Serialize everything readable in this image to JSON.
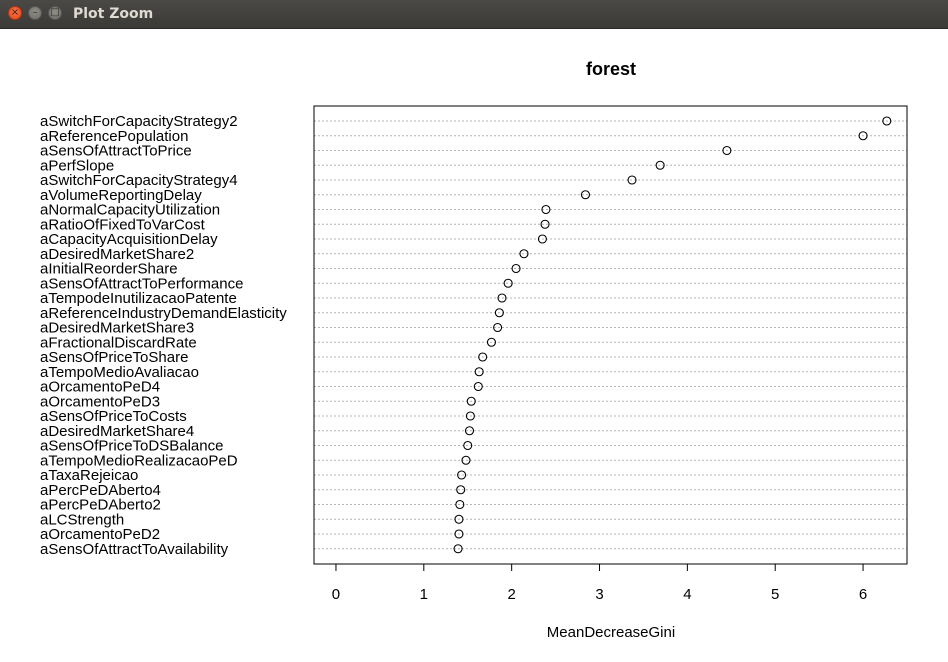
{
  "window": {
    "title": "Plot Zoom",
    "close_glyph": "×",
    "minimize_glyph": "–",
    "maximize_glyph": "□"
  },
  "chart_data": {
    "type": "scatter",
    "title": "forest",
    "xlabel": "MeanDecreaseGini",
    "ylabel": "",
    "xlim": [
      -0.25,
      6.5
    ],
    "xticks": [
      0,
      1,
      2,
      3,
      4,
      5,
      6
    ],
    "grid": "horizontal dotted",
    "legend": "none",
    "categories": [
      "aSwitchForCapacityStrategy2",
      "aReferencePopulation",
      "aSensOfAttractToPrice",
      "aPerfSlope",
      "aSwitchForCapacityStrategy4",
      "aVolumeReportingDelay",
      "aNormalCapacityUtilization",
      "aRatioOfFixedToVarCost",
      "aCapacityAcquisitionDelay",
      "aDesiredMarketShare2",
      "aInitialReorderShare",
      "aSensOfAttractToPerformance",
      "aTempodeInutilizacaoPatente",
      "aReferenceIndustryDemandElasticity",
      "aDesiredMarketShare3",
      "aFractionalDiscardRate",
      "aSensOfPriceToShare",
      "aTempoMedioAvaliacao",
      "aOrcamentoPeD4",
      "aOrcamentoPeD3",
      "aSensOfPriceToCosts",
      "aDesiredMarketShare4",
      "aSensOfPriceToDSBalance",
      "aTempoMedioRealizacaoPeD",
      "aTaxaRejeicao",
      "aPercPeDAberto4",
      "aPercPeDAberto2",
      "aLCStrength",
      "aOrcamentoPeD2",
      "aSensOfAttractToAvailability"
    ],
    "values": [
      6.27,
      6.0,
      4.45,
      3.69,
      3.37,
      2.84,
      2.39,
      2.38,
      2.35,
      2.14,
      2.05,
      1.96,
      1.89,
      1.86,
      1.84,
      1.77,
      1.67,
      1.63,
      1.62,
      1.54,
      1.53,
      1.52,
      1.5,
      1.48,
      1.43,
      1.42,
      1.41,
      1.4,
      1.4,
      1.39
    ],
    "colors": {
      "grid": "#b4b4b4",
      "axis": "#000000",
      "point": "#000000"
    }
  }
}
